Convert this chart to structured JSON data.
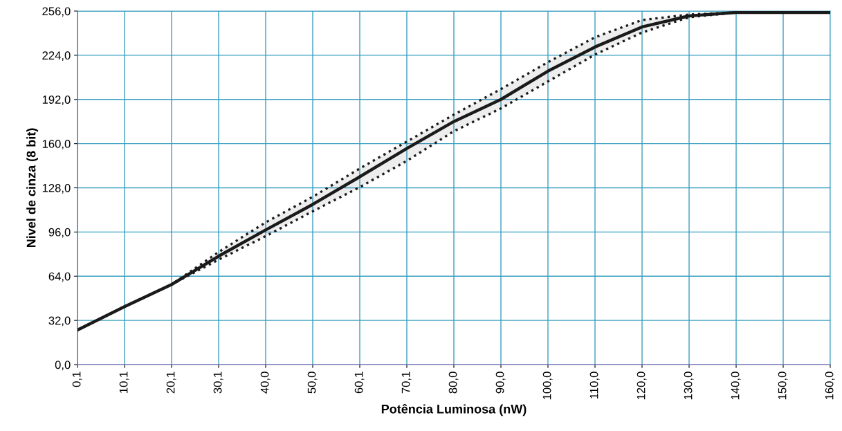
{
  "chart_data": {
    "type": "line",
    "xlabel": "Potência Luminosa (nW)",
    "ylabel": "Nivel de cinza (8 bit)",
    "categories": [
      "0,1",
      "10,1",
      "20,1",
      "30,1",
      "40,0",
      "50,0",
      "60,1",
      "70,1",
      "80,0",
      "90,0",
      "100,0",
      "110,0",
      "120,0",
      "130,0",
      "140,0",
      "150,0",
      "160,0"
    ],
    "series": [
      {
        "color": "#1a1a1a",
        "line_style": "solid",
        "values": [
          25,
          42,
          58,
          78.5,
          97.5,
          116,
          136,
          156.5,
          176,
          192,
          212.5,
          230,
          244.5,
          252.5,
          255,
          255,
          255
        ],
        "upper": [
          25,
          42,
          58,
          81.5,
          103,
          121.5,
          142,
          161.5,
          181,
          199.5,
          219,
          237,
          249.5,
          253.5,
          255,
          255,
          255
        ],
        "lower": [
          25,
          42,
          58,
          76,
          93,
          111,
          128.5,
          147.5,
          169,
          185.5,
          205,
          224.5,
          240.5,
          251.5,
          255,
          255,
          255
        ]
      }
    ],
    "ylim": [
      0,
      256
    ],
    "yticks": [
      {
        "value": 0,
        "label": "0,0"
      },
      {
        "value": 32,
        "label": "32,0"
      },
      {
        "value": 64,
        "label": "64,0"
      },
      {
        "value": 96,
        "label": "96,0"
      },
      {
        "value": 128,
        "label": "128,0"
      },
      {
        "value": 160,
        "label": "160,0"
      },
      {
        "value": 192,
        "label": "192,0"
      },
      {
        "value": 224,
        "label": "224,0"
      },
      {
        "value": 256,
        "label": "256,0"
      }
    ],
    "grid": true,
    "marker": "none"
  }
}
